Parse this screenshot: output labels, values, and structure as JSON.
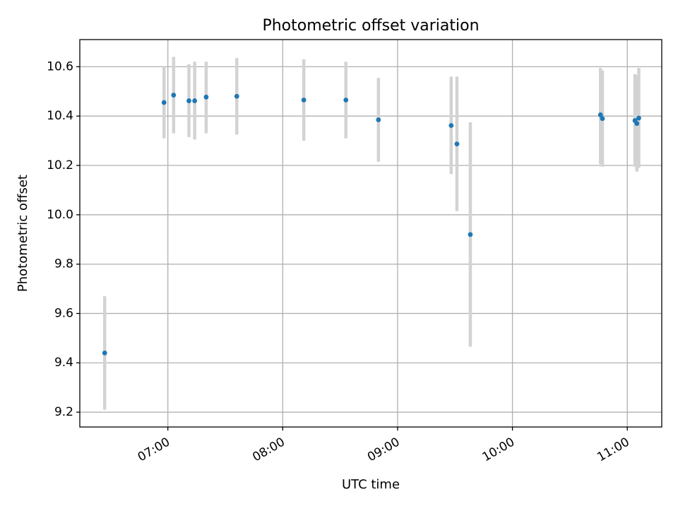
{
  "chart_data": {
    "type": "scatter",
    "title": "Photometric offset variation",
    "xlabel": "UTC time",
    "ylabel": "Photometric offset",
    "x_axis": "time (UTC, HH:MM)",
    "xlim": [
      "06:14",
      "11:18"
    ],
    "ylim": [
      9.14,
      10.71
    ],
    "x_ticks": [
      "07:00",
      "08:00",
      "09:00",
      "10:00",
      "11:00"
    ],
    "y_ticks": [
      9.2,
      9.4,
      9.6,
      9.8,
      10.0,
      10.2,
      10.4,
      10.6
    ],
    "y_tick_labels": [
      "9.2",
      "9.4",
      "9.6",
      "9.8",
      "10.0",
      "10.2",
      "10.4",
      "10.6"
    ],
    "grid": true,
    "legend": "none",
    "marker_color": "#1f77b4",
    "errorbar_color": "#d3d3d3",
    "points": [
      {
        "x": "06:27",
        "y": 9.44,
        "ylow": 9.21,
        "yhigh": 9.67
      },
      {
        "x": "06:58",
        "y": 10.455,
        "ylow": 10.31,
        "yhigh": 10.6
      },
      {
        "x": "07:03",
        "y": 10.485,
        "ylow": 10.33,
        "yhigh": 10.64
      },
      {
        "x": "07:11",
        "y": 10.462,
        "ylow": 10.315,
        "yhigh": 10.61
      },
      {
        "x": "07:14",
        "y": 10.462,
        "ylow": 10.305,
        "yhigh": 10.62
      },
      {
        "x": "07:20",
        "y": 10.477,
        "ylow": 10.33,
        "yhigh": 10.62
      },
      {
        "x": "07:36",
        "y": 10.48,
        "ylow": 10.325,
        "yhigh": 10.635
      },
      {
        "x": "08:11",
        "y": 10.465,
        "ylow": 10.3,
        "yhigh": 10.63
      },
      {
        "x": "08:33",
        "y": 10.465,
        "ylow": 10.31,
        "yhigh": 10.62
      },
      {
        "x": "08:50",
        "y": 10.385,
        "ylow": 10.215,
        "yhigh": 10.555
      },
      {
        "x": "09:28",
        "y": 10.362,
        "ylow": 10.165,
        "yhigh": 10.56
      },
      {
        "x": "09:31",
        "y": 10.287,
        "ylow": 10.015,
        "yhigh": 10.56
      },
      {
        "x": "09:38",
        "y": 9.92,
        "ylow": 9.465,
        "yhigh": 10.375
      },
      {
        "x": "10:46",
        "y": 10.405,
        "ylow": 10.205,
        "yhigh": 10.595
      },
      {
        "x": "10:47",
        "y": 10.39,
        "ylow": 10.195,
        "yhigh": 10.585
      },
      {
        "x": "11:04",
        "y": 10.382,
        "ylow": 10.195,
        "yhigh": 10.57
      },
      {
        "x": "11:05",
        "y": 10.37,
        "ylow": 10.175,
        "yhigh": 10.565
      },
      {
        "x": "11:06",
        "y": 10.392,
        "ylow": 10.19,
        "yhigh": 10.595
      }
    ]
  }
}
